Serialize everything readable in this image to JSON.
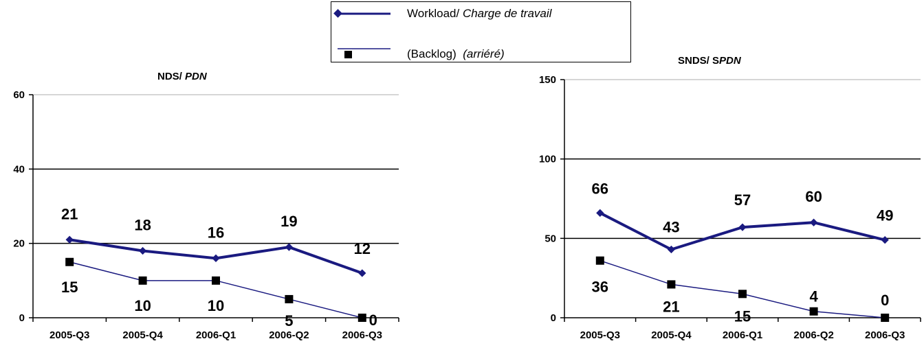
{
  "legend": {
    "workload_en": "Workload/",
    "workload_fr": "Charge de travail",
    "backlog_en": "(Backlog)",
    "backlog_fr": "(arriéré)"
  },
  "colors": {
    "workload": "#1a1a80",
    "backlog": "#000000",
    "axis": "#000000"
  },
  "chart_data": [
    {
      "type": "line",
      "title_main": "NDS/",
      "title_italic": "PDN",
      "categories": [
        "2005-Q3",
        "2005-Q4",
        "2006-Q1",
        "2006-Q2",
        "2006-Q3"
      ],
      "ylim": [
        0,
        60
      ],
      "yticks": [
        0,
        20,
        40,
        60
      ],
      "series": [
        {
          "name": "Workload/ Charge de travail",
          "values": [
            21,
            18,
            16,
            19,
            12
          ],
          "labels": [
            "21",
            "18",
            "16",
            "19",
            "12"
          ]
        },
        {
          "name": "(Backlog) (arriéré)",
          "values": [
            15,
            10,
            10,
            5,
            0
          ],
          "labels": [
            "15",
            "10",
            "10",
            "5",
            "0"
          ]
        }
      ],
      "grid": true
    },
    {
      "type": "line",
      "title_main": "SNDS/ S",
      "title_italic": "PDN",
      "categories": [
        "2005-Q3",
        "2005-Q4",
        "2006-Q1",
        "2006-Q2",
        "2006-Q3"
      ],
      "ylim": [
        0,
        150
      ],
      "yticks": [
        0,
        50,
        100,
        150
      ],
      "series": [
        {
          "name": "Workload/ Charge de travail",
          "values": [
            66,
            43,
            57,
            60,
            49
          ],
          "labels": [
            "66",
            "43",
            "57",
            "60",
            "49"
          ]
        },
        {
          "name": "(Backlog) (arriéré)",
          "values": [
            36,
            21,
            15,
            4,
            0
          ],
          "labels": [
            "36",
            "21",
            "15",
            "4",
            "0"
          ]
        }
      ],
      "grid": true
    }
  ]
}
